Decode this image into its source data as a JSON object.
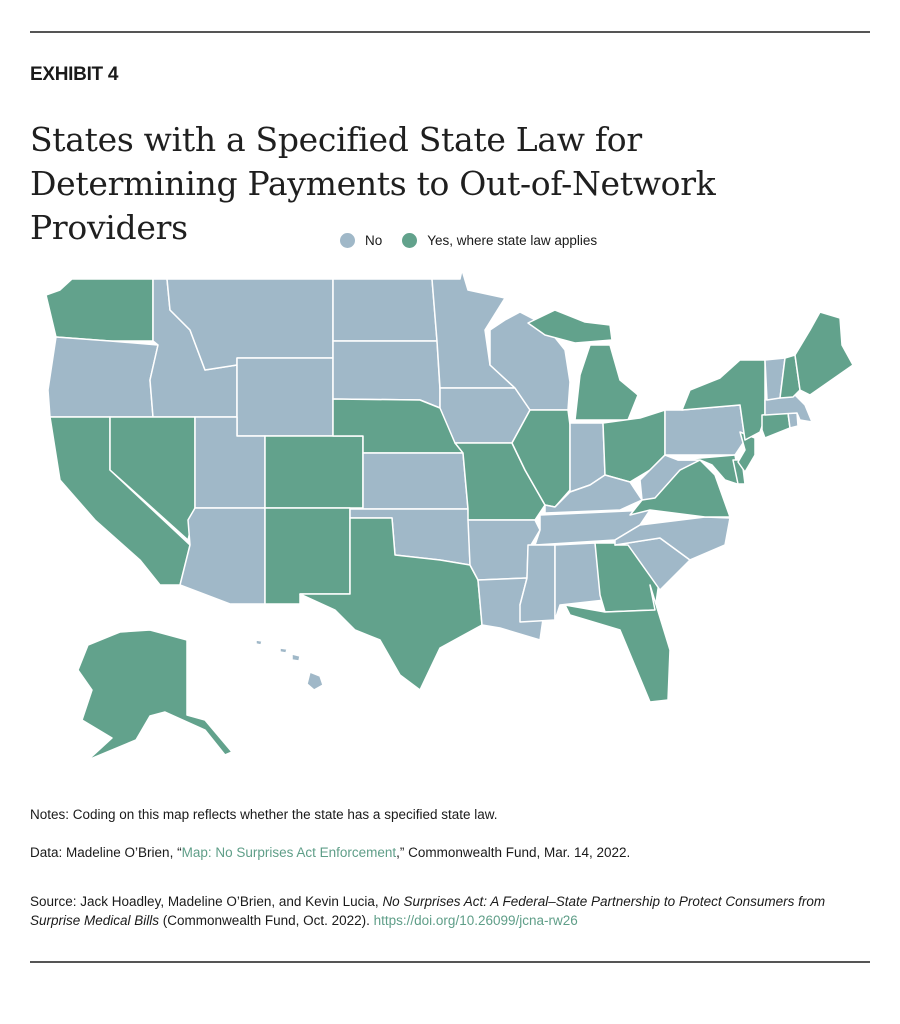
{
  "header": {
    "exhibit": "EXHIBIT 4",
    "title": "States with a Specified State Law for Determining Payments to Out-of-Network Providers"
  },
  "legend": {
    "no_label": "No",
    "yes_label": "Yes, where state law applies"
  },
  "colors": {
    "no": "#a0b8c8",
    "yes": "#62a28c",
    "border": "#ffffff",
    "link": "#5f9e88"
  },
  "map_data": {
    "yes_states": [
      "WA",
      "CA",
      "NV",
      "CO",
      "NM",
      "NE",
      "TX",
      "MO",
      "IL",
      "MI",
      "OH",
      "GA",
      "FL",
      "VA",
      "MD",
      "DE",
      "NJ",
      "NY",
      "CT",
      "NH",
      "ME",
      "AK"
    ],
    "no_states": [
      "OR",
      "ID",
      "MT",
      "WY",
      "UT",
      "AZ",
      "ND",
      "SD",
      "KS",
      "OK",
      "MN",
      "IA",
      "WI",
      "AR",
      "LA",
      "MS",
      "AL",
      "TN",
      "KY",
      "IN",
      "WV",
      "NC",
      "SC",
      "PA",
      "VT",
      "MA",
      "RI",
      "HI"
    ]
  },
  "notes": {
    "coding": "Notes: Coding on this map reflects whether the state has a specified state law.",
    "data_prefix": "Data: Madeline O’Brien, “",
    "data_link": "Map: No Surprises Act Enforcement",
    "data_suffix": ",” Commonwealth Fund, Mar. 14, 2022.",
    "source_prefix": "Source: Jack Hoadley, Madeline O’Brien, and Kevin Lucia, ",
    "source_title": "No Surprises Act: A Federal–State Partnership to Protect Consumers from Surprise Medical Bills",
    "source_suffix": " (Commonwealth Fund, Oct. 2022). ",
    "source_link": "https://doi.org/10.26099/jcna-rw26"
  }
}
